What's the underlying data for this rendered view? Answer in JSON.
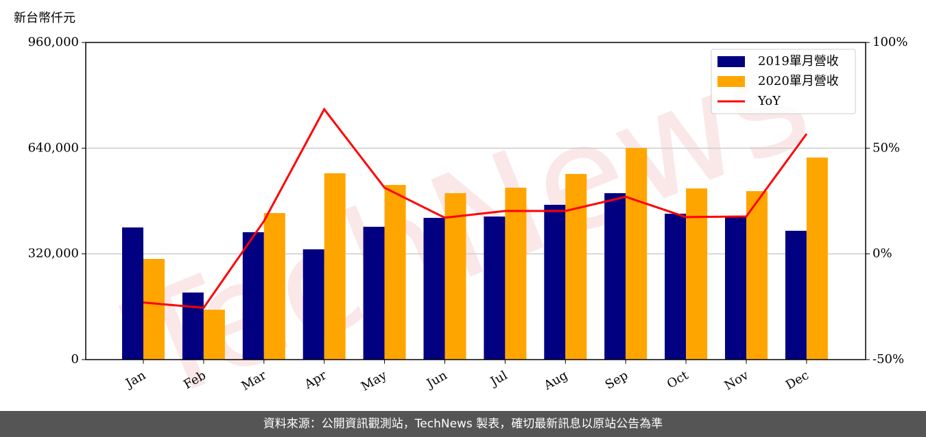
{
  "chart_data": {
    "type": "bar_line",
    "y_label": "新台幣仟元",
    "watermark": "TechNews",
    "footer": "資料來源：公開資訊觀測站，TechNews 製表，確切最新訊息以原站公告為準",
    "categories": [
      "Jan",
      "Feb",
      "Mar",
      "Apr",
      "May",
      "Jun",
      "Jul",
      "Aug",
      "Sep",
      "Oct",
      "Nov",
      "Dec"
    ],
    "series": [
      {
        "name": "2019單月營收",
        "type": "bar",
        "color": "#000080",
        "values": [
          400000,
          203000,
          385600,
          333800,
          402000,
          429000,
          433000,
          468600,
          503800,
          441600,
          431000,
          390000
        ]
      },
      {
        "name": "2020單月營收",
        "type": "bar",
        "color": "#ffa500",
        "values": [
          304800,
          151000,
          443700,
          564000,
          528700,
          503800,
          520400,
          561900,
          640700,
          518000,
          510000,
          611700
        ]
      },
      {
        "name": "YoY",
        "type": "line",
        "color": "#ff0000",
        "axis": "y2",
        "values": [
          -23,
          -25.5,
          15.5,
          68.4,
          31.3,
          17.1,
          20.3,
          20.3,
          27,
          17.4,
          17.7,
          56.8
        ]
      }
    ],
    "ylim": [
      0,
      960000
    ],
    "yticks": [
      0,
      {
        "value": 320000,
        "label": "320,000"
      },
      {
        "value": 640000,
        "label": "640,000"
      },
      {
        "value": 960000,
        "label": "960,000"
      }
    ],
    "y2lim": [
      -50,
      100
    ],
    "y2ticks": [
      {
        "value": -50,
        "label": "-50%"
      },
      {
        "value": 0,
        "label": "0%"
      },
      {
        "value": 50,
        "label": "50%"
      },
      {
        "value": 100,
        "label": "100%"
      }
    ],
    "grid": true,
    "legend": "upper-right"
  }
}
